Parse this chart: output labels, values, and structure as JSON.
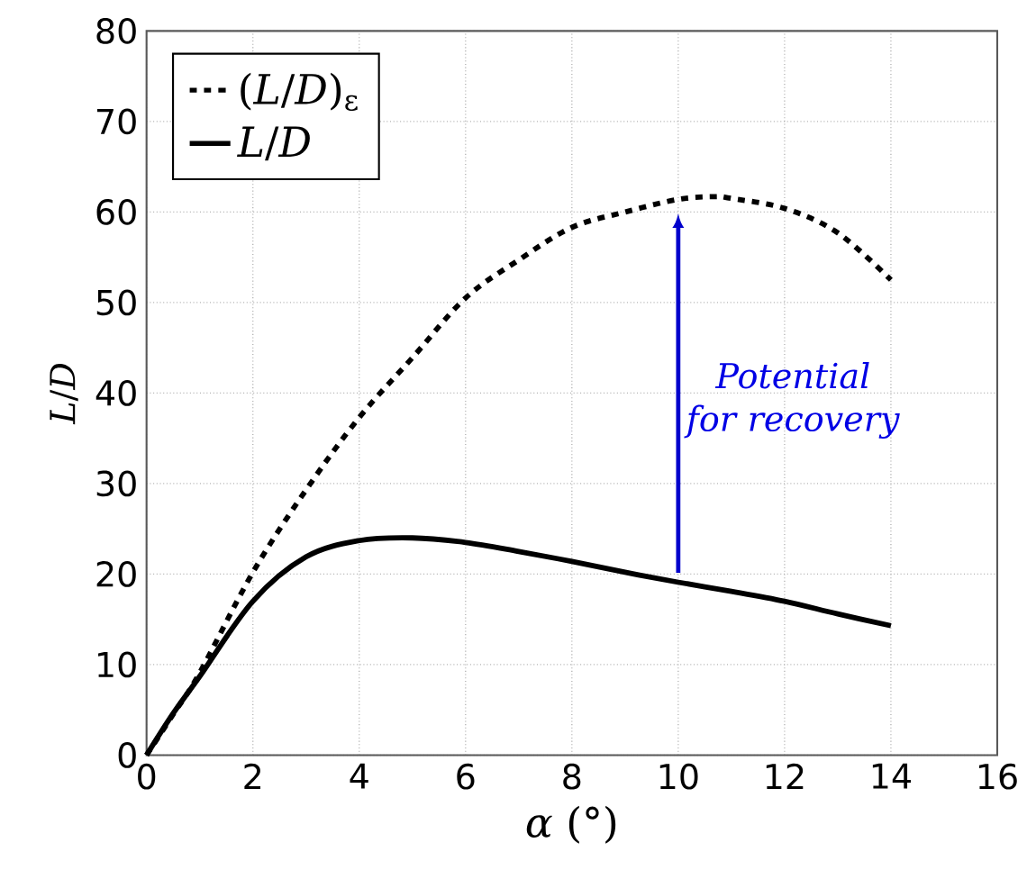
{
  "chart_data": {
    "type": "line",
    "xlabel": "*α* (°)",
    "ylabel": "*L*/*D*",
    "xlim": [
      0,
      16
    ],
    "ylim": [
      0,
      80
    ],
    "xticks": [
      0,
      2,
      4,
      6,
      8,
      10,
      12,
      14,
      16
    ],
    "yticks": [
      0,
      10,
      20,
      30,
      40,
      50,
      60,
      70,
      80
    ],
    "grid": true,
    "legend": "top left",
    "marker": "none",
    "series": [
      {
        "name": "(*L*/*D*)$_{ε}$",
        "color": "#000000",
        "line_style": "dashed",
        "x": [
          0,
          0.5,
          1,
          2,
          3,
          4,
          5,
          6,
          7,
          8,
          9,
          10,
          10.7,
          11,
          12,
          13,
          14
        ],
        "values": [
          0,
          4.5,
          9.1,
          20.2,
          29.3,
          37.3,
          43.9,
          50.5,
          54.7,
          58.3,
          60.0,
          61.4,
          61.7,
          61.5,
          60.4,
          57.7,
          52.5
        ]
      },
      {
        "name": "*L*/*D*",
        "color": "#000000",
        "line_style": "solid",
        "x": [
          0,
          0.5,
          1,
          2,
          3,
          4,
          5,
          6,
          7,
          8,
          9,
          10,
          11,
          12,
          13,
          14
        ],
        "values": [
          0,
          4.6,
          8.7,
          17.0,
          21.9,
          23.7,
          24.0,
          23.5,
          22.5,
          21.4,
          20.2,
          19.1,
          18.1,
          17.0,
          15.6,
          14.3
        ]
      }
    ],
    "annotations": [
      "*Potential for recovery*"
    ]
  }
}
